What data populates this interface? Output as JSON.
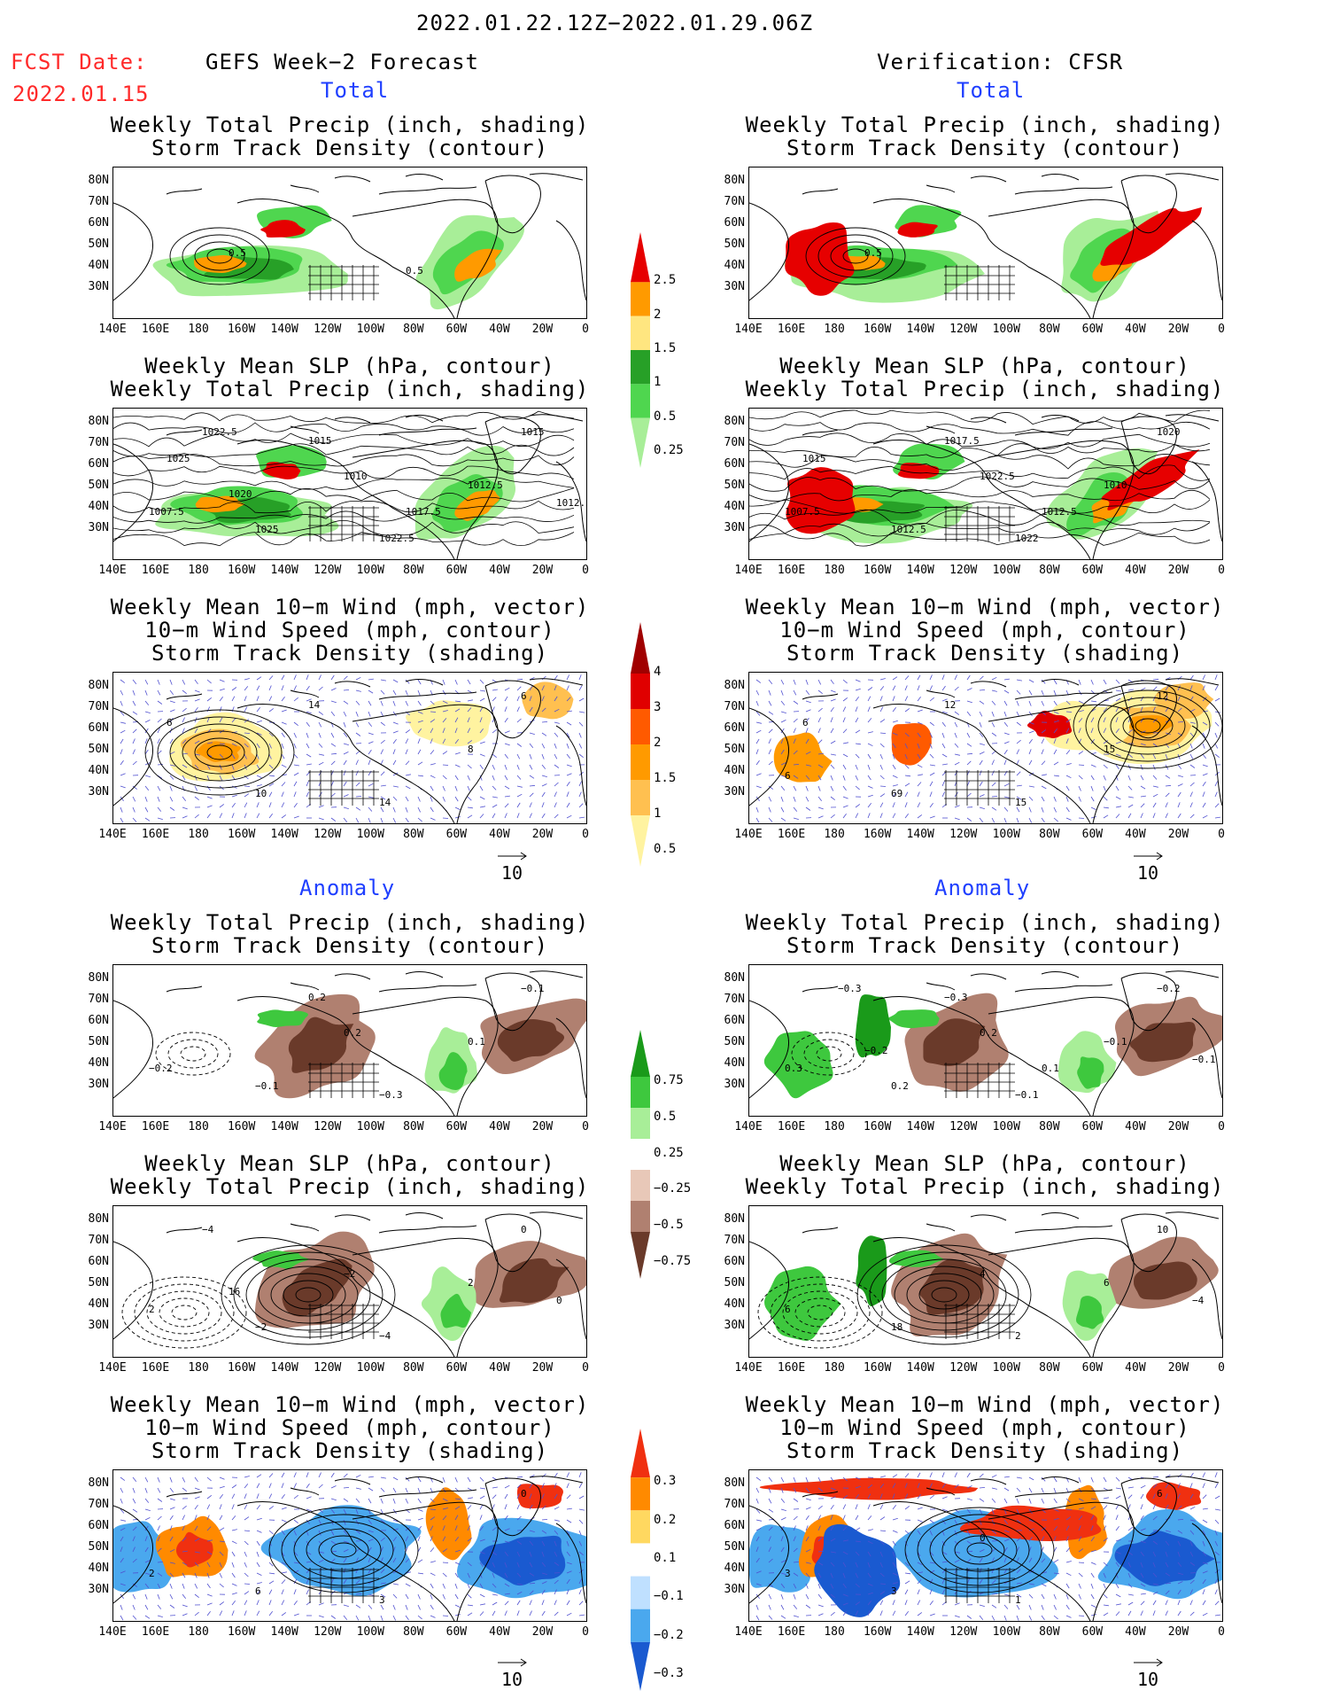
{
  "header": {
    "date_range": "2022.01.22.12Z−2022.01.29.06Z",
    "fcst_label": "FCST Date:",
    "fcst_date": "2022.01.15",
    "left_title": "GEFS Week−2 Forecast",
    "right_title": "Verification: CFSR"
  },
  "sections": {
    "total": "Total",
    "anomaly": "Anomaly"
  },
  "axes": {
    "lat_labels": [
      "80N",
      "70N",
      "60N",
      "50N",
      "40N",
      "30N"
    ],
    "lon_labels": [
      "140E",
      "160E",
      "180",
      "160W",
      "140W",
      "120W",
      "100W",
      "80W",
      "60W",
      "40W",
      "20W",
      "0"
    ]
  },
  "panels": {
    "precip_track": {
      "line1": "Weekly Total Precip (inch, shading)",
      "line2": "Storm Track Density (contour)"
    },
    "slp_precip": {
      "line1": "Weekly Mean SLP (hPa, contour)",
      "line2": "Weekly Total Precip (inch, shading)"
    },
    "wind": {
      "line1": "Weekly Mean 10−m Wind (mph, vector)",
      "line2": "10−m Wind Speed (mph, contour)",
      "line3": "Storm Track Density (shading)"
    }
  },
  "vector_reference": "10",
  "colorbars": {
    "total_precip": {
      "labels": [
        "2.5",
        "2",
        "1.5",
        "1",
        "0.5",
        "0.25"
      ],
      "colors": [
        "#e60000",
        "#ff9a00",
        "#ffe680",
        "#27a027",
        "#4fd64f",
        "#a8ee98"
      ]
    },
    "total_track": {
      "labels": [
        "4",
        "3",
        "2",
        "1.5",
        "1",
        "0.5"
      ],
      "colors": [
        "#a00000",
        "#e00000",
        "#ff5a00",
        "#ff9a00",
        "#ffc050",
        "#fff3a0"
      ]
    },
    "anom_precip": {
      "labels": [
        "0.75",
        "0.5",
        "0.25",
        "−0.25",
        "−0.5",
        "−0.75"
      ],
      "colors": [
        "#1a9a1a",
        "#3ec83e",
        "#a8ee98",
        "#ffffff",
        "#e8c8b8",
        "#b08070",
        "#6a3a2a"
      ]
    },
    "anom_track": {
      "labels": [
        "0.3",
        "0.2",
        "0.1",
        "−0.1",
        "−0.2",
        "−0.3"
      ],
      "colors": [
        "#f03010",
        "#ff8a00",
        "#ffd860",
        "#ffffff",
        "#bfe0ff",
        "#4aa8ee",
        "#1a5ad0"
      ]
    }
  },
  "map_annotations": {
    "L1": [
      "0.5",
      "0.5"
    ],
    "R1": [
      "0.5"
    ],
    "L2": [
      "1017.5",
      "1025",
      "1015",
      "1012.5",
      "1025",
      "1015",
      "1022.5",
      "1007.5",
      "1010",
      "1012.5",
      "1022.5",
      "1020"
    ],
    "R2": [
      "1012.5",
      "1015",
      "1017.5",
      "1010",
      "1012.5",
      "1020",
      "1022",
      "1007.5",
      "1022.5"
    ],
    "L3": [
      "6",
      "14",
      "8",
      "10",
      "6",
      "14"
    ],
    "R3": [
      "6",
      "12",
      "15",
      "69",
      "12",
      "15",
      "6"
    ],
    "L4": [
      "0.2",
      "0.1",
      "−0.1",
      "−0.1",
      "−0.3",
      "−0.2",
      "0.2"
    ],
    "R4": [
      "−0.3",
      "−0.1",
      "0.2",
      "−0.2",
      "−0.1",
      "0.3",
      "0.2",
      "−0.1",
      "−0.3",
      "−0.2",
      "0.1"
    ],
    "L5": [
      "2",
      "−2",
      "0",
      "−4",
      "2",
      "−2",
      "0",
      "−4",
      "16"
    ],
    "R5": [
      "6",
      "18",
      "10",
      "2",
      "6",
      "4",
      "−4"
    ],
    "L6": [
      "6",
      "0",
      "3",
      "2"
    ],
    "R6": [
      "3",
      "6",
      "1",
      "3",
      "0"
    ]
  }
}
